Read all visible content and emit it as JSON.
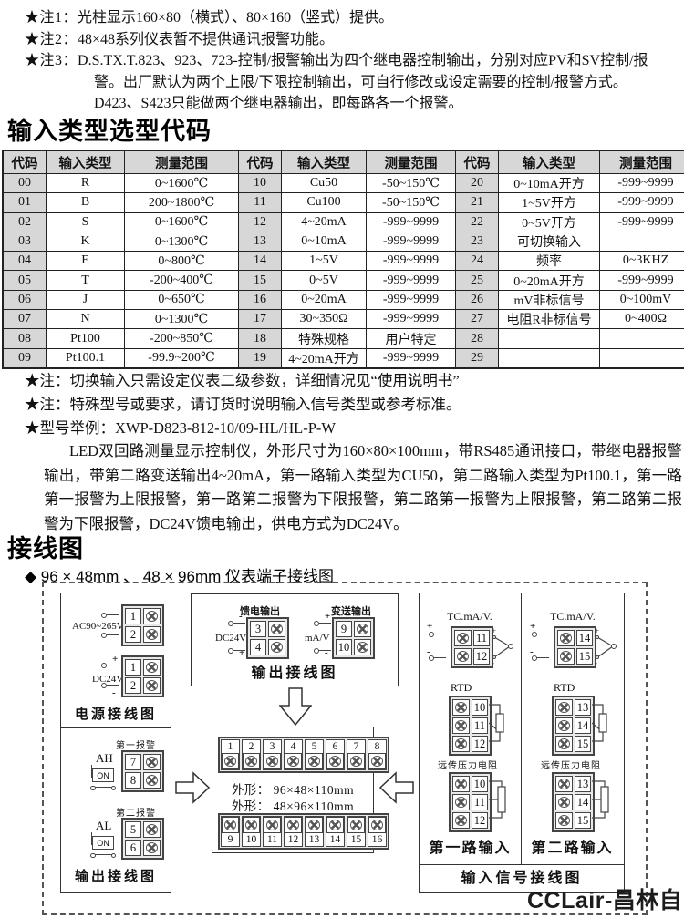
{
  "notes_top": [
    {
      "label": "★注1：",
      "text": "光柱显示160×80（横式）、80×160（竖式）提供。"
    },
    {
      "label": "★注2：",
      "text": "48×48系列仪表暂不提供通讯报警功能。"
    },
    {
      "label": "★注3：",
      "text": "D.S.TX.T.823、923、723-控制/报警输出为四个继电器控制输出，分别对应PV和SV控制/报警。出厂默认为两个上限/下限控制输出，可自行修改或设定需要的控制/报警方式。D423、S423只能做两个继电器输出，即每路各一个报警。"
    }
  ],
  "selection_section": {
    "title": "输入类型选型代码",
    "table": {
      "headers": [
        "代码",
        "输入类型",
        "测量范围",
        "代码",
        "输入类型",
        "测量范围",
        "代码",
        "输入类型",
        "测量范围"
      ],
      "rows": [
        [
          "00",
          "R",
          "0~1600℃",
          "10",
          "Cu50",
          "-50~150℃",
          "20",
          "0~10mA开方",
          "-999~9999"
        ],
        [
          "01",
          "B",
          "200~1800℃",
          "11",
          "Cu100",
          "-50~150℃",
          "21",
          "1~5V开方",
          "-999~9999"
        ],
        [
          "02",
          "S",
          "0~1600℃",
          "12",
          "4~20mA",
          "-999~9999",
          "22",
          "0~5V开方",
          "-999~9999"
        ],
        [
          "03",
          "K",
          "0~1300℃",
          "13",
          "0~10mA",
          "-999~9999",
          "23",
          "可切换输入",
          ""
        ],
        [
          "04",
          "E",
          "0~800℃",
          "14",
          "1~5V",
          "-999~9999",
          "24",
          "频率",
          "0~3KHZ"
        ],
        [
          "05",
          "T",
          "-200~400℃",
          "15",
          "0~5V",
          "-999~9999",
          "25",
          "0~20mA开方",
          "-999~9999"
        ],
        [
          "06",
          "J",
          "0~650℃",
          "16",
          "0~20mA",
          "-999~9999",
          "26",
          "mV非标信号",
          "0~100mV"
        ],
        [
          "07",
          "N",
          "0~1300℃",
          "17",
          "30~350Ω",
          "-999~9999",
          "27",
          "电阻R非标信号",
          "0~400Ω"
        ],
        [
          "08",
          "Pt100",
          "-200~850℃",
          "18",
          "特殊规格",
          "用户特定",
          "28",
          "",
          ""
        ],
        [
          "09",
          "Pt100.1",
          "-99.9~200℃",
          "19",
          "4~20mA开方",
          "-999~9999",
          "29",
          "",
          ""
        ]
      ]
    },
    "notes": [
      "★注：切换输入只需设定仪表二级参数，详细情况见“使用说明书”",
      "★注：特殊型号或要求，请订货时说明输入信号类型或参考标准。",
      "★型号举例：XWP-D823-812-10/09-HL/HL-P-W"
    ],
    "example_desc": "LED双回路测量显示控制仪，外形尺寸为160×80×100mm，带RS485通讯接口，带继电器报警输出，带第二路变送输出4~20mA，第一路输入类型为CU50，第二路输入类型为Pt100.1，第一路第一报警为上限报警，第一路第二报警为下限报警，第二路第一报警为上限报警，第二路第二报警为下限报警，DC24V馈电输出，供电方式为DC24V。"
  },
  "wiring_section": {
    "title": "接线图",
    "subtitle": "◆ 96 × 48mm 、 48 × 96mm 仪表端子接线图",
    "power_box": {
      "label": "电源接线图",
      "ac": {
        "name": "AC90~265V",
        "terminals": [
          "1",
          "2"
        ]
      },
      "dc": {
        "name": "DC24V",
        "polarity": [
          "+",
          "-"
        ],
        "terminals": [
          "1",
          "2"
        ]
      }
    },
    "alarm_box": {
      "label": "输出接线图",
      "groups": [
        {
          "name": "第一报警",
          "switch": "AH",
          "on": "ON",
          "terminals": [
            "7",
            "8"
          ]
        },
        {
          "name": "第二报警",
          "switch": "AL",
          "on": "ON",
          "terminals": [
            "5",
            "6"
          ]
        }
      ]
    },
    "output_box": {
      "label": "输出接线图",
      "feed": {
        "name": "馈电输出",
        "sub": "DC24V",
        "polarity": [
          "-",
          "+"
        ],
        "terminals": [
          "3",
          "4"
        ]
      },
      "transmit": {
        "name": "变送输出",
        "sub": "mA/V",
        "polarity": [
          "+",
          "-"
        ],
        "terminals": [
          "9",
          "10"
        ]
      }
    },
    "center_box": {
      "top_terminals": [
        "1",
        "2",
        "3",
        "4",
        "5",
        "6",
        "7",
        "8"
      ],
      "bottom_terminals": [
        "9",
        "10",
        "11",
        "12",
        "13",
        "14",
        "15",
        "16"
      ],
      "dim1": "外形： 96×48×110mm",
      "dim2": "外形： 48×96×110mm"
    },
    "input_box": {
      "label": "输入信号接线图",
      "channels": [
        {
          "label": "第一路输入",
          "tc": {
            "name": "TC.mA/V.",
            "polarity": [
              "+",
              "-"
            ],
            "terminals": [
              "11",
              "12"
            ]
          },
          "rtd": {
            "name": "RTD",
            "terminals": [
              "10",
              "11",
              "12"
            ]
          },
          "pressure": {
            "name": "远传压力电阻",
            "terminals": [
              "10",
              "11",
              "12"
            ]
          }
        },
        {
          "label": "第二路输入",
          "tc": {
            "name": "TC.mA/V.",
            "polarity": [
              "+",
              "-"
            ],
            "terminals": [
              "14",
              "15"
            ]
          },
          "rtd": {
            "name": "RTD",
            "terminals": [
              "13",
              "14",
              "15"
            ]
          },
          "pressure": {
            "name": "远传压力电阻",
            "terminals": [
              "13",
              "14",
              "15"
            ]
          }
        }
      ]
    },
    "footer": "CCLair-昌林自动化"
  }
}
